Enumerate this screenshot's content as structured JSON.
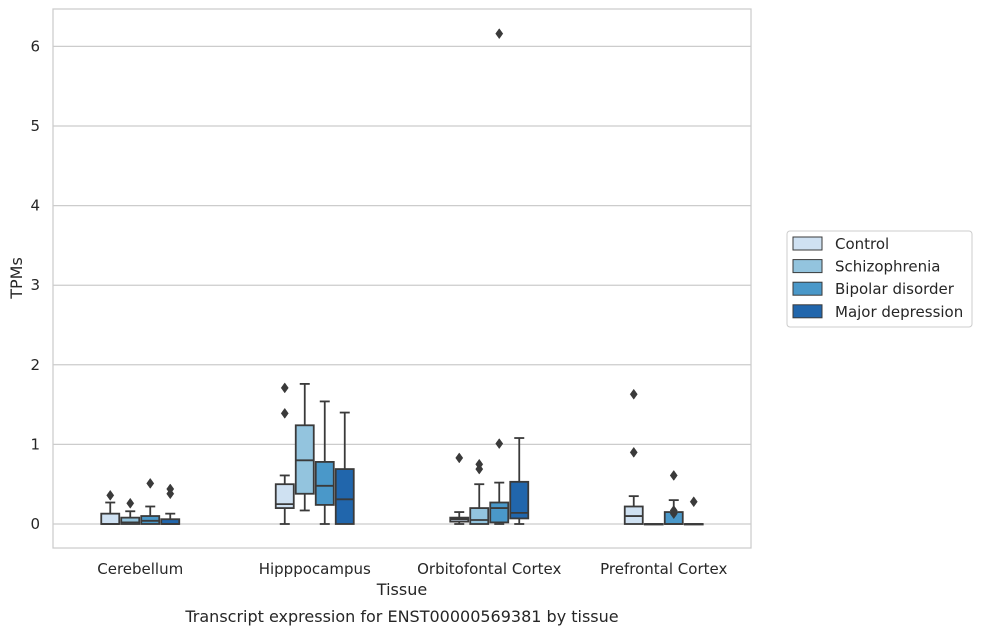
{
  "caption": "Transcript expression for ENST00000569381 by tissue",
  "chart_data": {
    "type": "box",
    "xlabel": "Tissue",
    "ylabel": "TPMs",
    "ylim": [
      -0.3,
      6.5
    ],
    "yticks": [
      "0",
      "1",
      "2",
      "3",
      "4",
      "5",
      "6"
    ],
    "grid": true,
    "legend_placement": "right",
    "categories": [
      "Cerebellum",
      "Hipppocampus",
      "Orbitofontal Cortex",
      "Prefrontal Cortex"
    ],
    "series": [
      {
        "name": "Control",
        "color": "#cfe1f2",
        "boxes": [
          {
            "whislo": 0,
            "q1": 0,
            "med": 0,
            "q3": 0.13,
            "whishi": 0.27,
            "fliers": [
              0.36
            ]
          },
          {
            "whislo": 0,
            "q1": 0.2,
            "med": 0.25,
            "q3": 0.5,
            "whishi": 0.61,
            "fliers": [
              1.39,
              1.71
            ]
          },
          {
            "whislo": 0,
            "q1": 0.03,
            "med": 0.06,
            "q3": 0.08,
            "whishi": 0.15,
            "fliers": [
              0.83
            ]
          },
          {
            "whislo": 0,
            "q1": 0,
            "med": 0.1,
            "q3": 0.22,
            "whishi": 0.35,
            "fliers": [
              0.9,
              1.63
            ]
          }
        ]
      },
      {
        "name": "Schizophrenia",
        "color": "#93c4de",
        "boxes": [
          {
            "whislo": 0,
            "q1": 0,
            "med": 0.02,
            "q3": 0.08,
            "whishi": 0.16,
            "fliers": [
              0.26
            ]
          },
          {
            "whislo": 0.17,
            "q1": 0.38,
            "med": 0.8,
            "q3": 1.24,
            "whishi": 1.76,
            "fliers": []
          },
          {
            "whislo": 0,
            "q1": 0,
            "med": 0.05,
            "q3": 0.2,
            "whishi": 0.5,
            "fliers": [
              0.69,
              0.75
            ]
          },
          {
            "whislo": 0,
            "q1": 0,
            "med": 0,
            "q3": 0,
            "whishi": 0,
            "fliers": []
          }
        ]
      },
      {
        "name": "Bipolar disorder",
        "color": "#4a98c9",
        "boxes": [
          {
            "whislo": 0,
            "q1": 0,
            "med": 0.04,
            "q3": 0.1,
            "whishi": 0.22,
            "fliers": [
              0.51
            ]
          },
          {
            "whislo": 0,
            "q1": 0.24,
            "med": 0.48,
            "q3": 0.78,
            "whishi": 1.54,
            "fliers": []
          },
          {
            "whislo": 0,
            "q1": 0.02,
            "med": 0.2,
            "q3": 0.27,
            "whishi": 0.52,
            "fliers": [
              1.01,
              6.16
            ]
          },
          {
            "whislo": 0,
            "q1": 0,
            "med": 0,
            "q3": 0.15,
            "whishi": 0.3,
            "fliers": [
              0.13,
              0.17,
              0.61
            ]
          }
        ]
      },
      {
        "name": "Major depression",
        "color": "#2166ac",
        "boxes": [
          {
            "whislo": 0,
            "q1": 0,
            "med": 0,
            "q3": 0.06,
            "whishi": 0.13,
            "fliers": [
              0.38,
              0.44
            ]
          },
          {
            "whislo": 0,
            "q1": 0,
            "med": 0.31,
            "q3": 0.69,
            "whishi": 1.4,
            "fliers": []
          },
          {
            "whislo": 0,
            "q1": 0.07,
            "med": 0.14,
            "q3": 0.53,
            "whishi": 1.08,
            "fliers": []
          },
          {
            "whislo": 0,
            "q1": 0,
            "med": 0,
            "q3": 0,
            "whishi": 0,
            "fliers": [
              0.28
            ]
          }
        ]
      }
    ]
  }
}
